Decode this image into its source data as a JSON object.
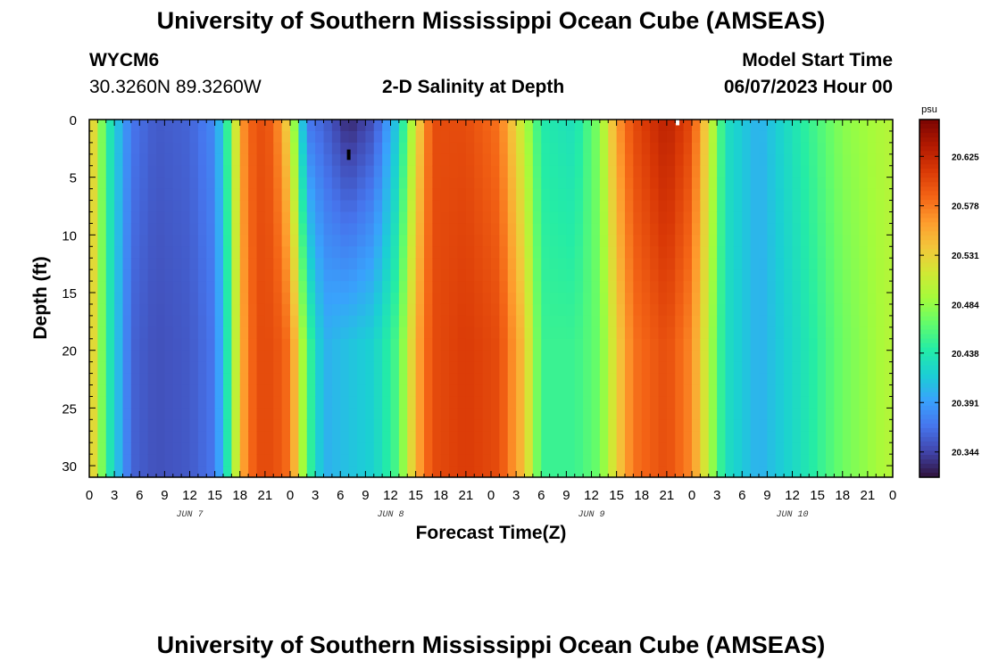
{
  "header": {
    "title": "University of Southern Mississippi Ocean Cube (AMSEAS)",
    "station_id": "WYCM6",
    "station_coords": "30.3260N  89.3260W",
    "chart_title": "2-D Salinity at Depth",
    "model_start_label": "Model Start Time",
    "model_start_value": "06/07/2023 Hour 00"
  },
  "footer": {
    "title": "University of Southern Mississippi Ocean Cube (AMSEAS)"
  },
  "chart_data": {
    "type": "heatmap",
    "title": "2-D Salinity at Depth",
    "xlabel": "Forecast Time(Z)",
    "ylabel": "Depth (ft)",
    "x_hours_range": [
      0,
      96
    ],
    "y_range": [
      0,
      31
    ],
    "x_tick_labels": [
      "0",
      "3",
      "6",
      "9",
      "12",
      "15",
      "18",
      "21",
      "0",
      "3",
      "6",
      "9",
      "12",
      "15",
      "18",
      "21",
      "0",
      "3",
      "6",
      "9",
      "12",
      "15",
      "18",
      "21",
      "0",
      "3",
      "6",
      "9",
      "12",
      "15",
      "18",
      "21",
      "0"
    ],
    "y_ticks": [
      0,
      5,
      10,
      15,
      20,
      25,
      30
    ],
    "date_labels": [
      {
        "text": "JUN 7",
        "hour": 12
      },
      {
        "text": "JUN 8",
        "hour": 36
      },
      {
        "text": "JUN 9",
        "hour": 60
      },
      {
        "text": "JUN 10",
        "hour": 84
      }
    ],
    "colorbar": {
      "unit": "psu",
      "min": 20.32,
      "max": 20.66,
      "ticks": [
        20.625,
        20.578,
        20.531,
        20.484,
        20.438,
        20.391,
        20.344
      ],
      "tick_labels": [
        "20.625",
        "20.578",
        "20.531",
        "20.484",
        "20.438",
        "20.391",
        "20.344"
      ],
      "colors": [
        "#30123b",
        "#4145ab",
        "#4675ed",
        "#39a2fc",
        "#1bcfd4",
        "#24eca6",
        "#61fc6c",
        "#a4fc3b",
        "#d1e834",
        "#f3c63a",
        "#fe9b2d",
        "#f36315",
        "#d93806",
        "#b11901",
        "#7a0402"
      ]
    },
    "salinity_profile": [
      {
        "hour": 0,
        "surface": 20.55,
        "bottom": 20.55
      },
      {
        "hour": 1,
        "surface": 20.5,
        "bottom": 20.5
      },
      {
        "hour": 2,
        "surface": 20.45,
        "bottom": 20.45
      },
      {
        "hour": 3,
        "surface": 20.42,
        "bottom": 20.42
      },
      {
        "hour": 5,
        "surface": 20.37,
        "bottom": 20.36
      },
      {
        "hour": 8,
        "surface": 20.355,
        "bottom": 20.35
      },
      {
        "hour": 12,
        "surface": 20.36,
        "bottom": 20.355
      },
      {
        "hour": 15,
        "surface": 20.38,
        "bottom": 20.37
      },
      {
        "hour": 17,
        "surface": 20.47,
        "bottom": 20.46
      },
      {
        "hour": 18,
        "surface": 20.56,
        "bottom": 20.55
      },
      {
        "hour": 20,
        "surface": 20.6,
        "bottom": 20.6
      },
      {
        "hour": 22,
        "surface": 20.59,
        "bottom": 20.6
      },
      {
        "hour": 24,
        "surface": 20.52,
        "bottom": 20.58
      },
      {
        "hour": 26,
        "surface": 20.37,
        "bottom": 20.46
      },
      {
        "hour": 28,
        "surface": 20.36,
        "bottom": 20.4
      },
      {
        "hour": 31,
        "surface": 20.33,
        "bottom": 20.41
      },
      {
        "hour": 34,
        "surface": 20.35,
        "bottom": 20.42
      },
      {
        "hour": 37,
        "surface": 20.42,
        "bottom": 20.46
      },
      {
        "hour": 39,
        "surface": 20.52,
        "bottom": 20.55
      },
      {
        "hour": 41,
        "surface": 20.6,
        "bottom": 20.6
      },
      {
        "hour": 45,
        "surface": 20.6,
        "bottom": 20.61
      },
      {
        "hour": 49,
        "surface": 20.58,
        "bottom": 20.6
      },
      {
        "hour": 52,
        "surface": 20.5,
        "bottom": 20.54
      },
      {
        "hour": 54,
        "surface": 20.44,
        "bottom": 20.45
      },
      {
        "hour": 58,
        "surface": 20.43,
        "bottom": 20.45
      },
      {
        "hour": 61,
        "surface": 20.48,
        "bottom": 20.47
      },
      {
        "hour": 63,
        "surface": 20.56,
        "bottom": 20.53
      },
      {
        "hour": 65,
        "surface": 20.6,
        "bottom": 20.58
      },
      {
        "hour": 69,
        "surface": 20.63,
        "bottom": 20.6
      },
      {
        "hour": 72,
        "surface": 20.6,
        "bottom": 20.57
      },
      {
        "hour": 74,
        "surface": 20.52,
        "bottom": 20.5
      },
      {
        "hour": 76,
        "surface": 20.43,
        "bottom": 20.43
      },
      {
        "hour": 80,
        "surface": 20.4,
        "bottom": 20.4
      },
      {
        "hour": 85,
        "surface": 20.44,
        "bottom": 20.43
      },
      {
        "hour": 90,
        "surface": 20.48,
        "bottom": 20.47
      },
      {
        "hour": 96,
        "surface": 20.5,
        "bottom": 20.5
      }
    ]
  }
}
